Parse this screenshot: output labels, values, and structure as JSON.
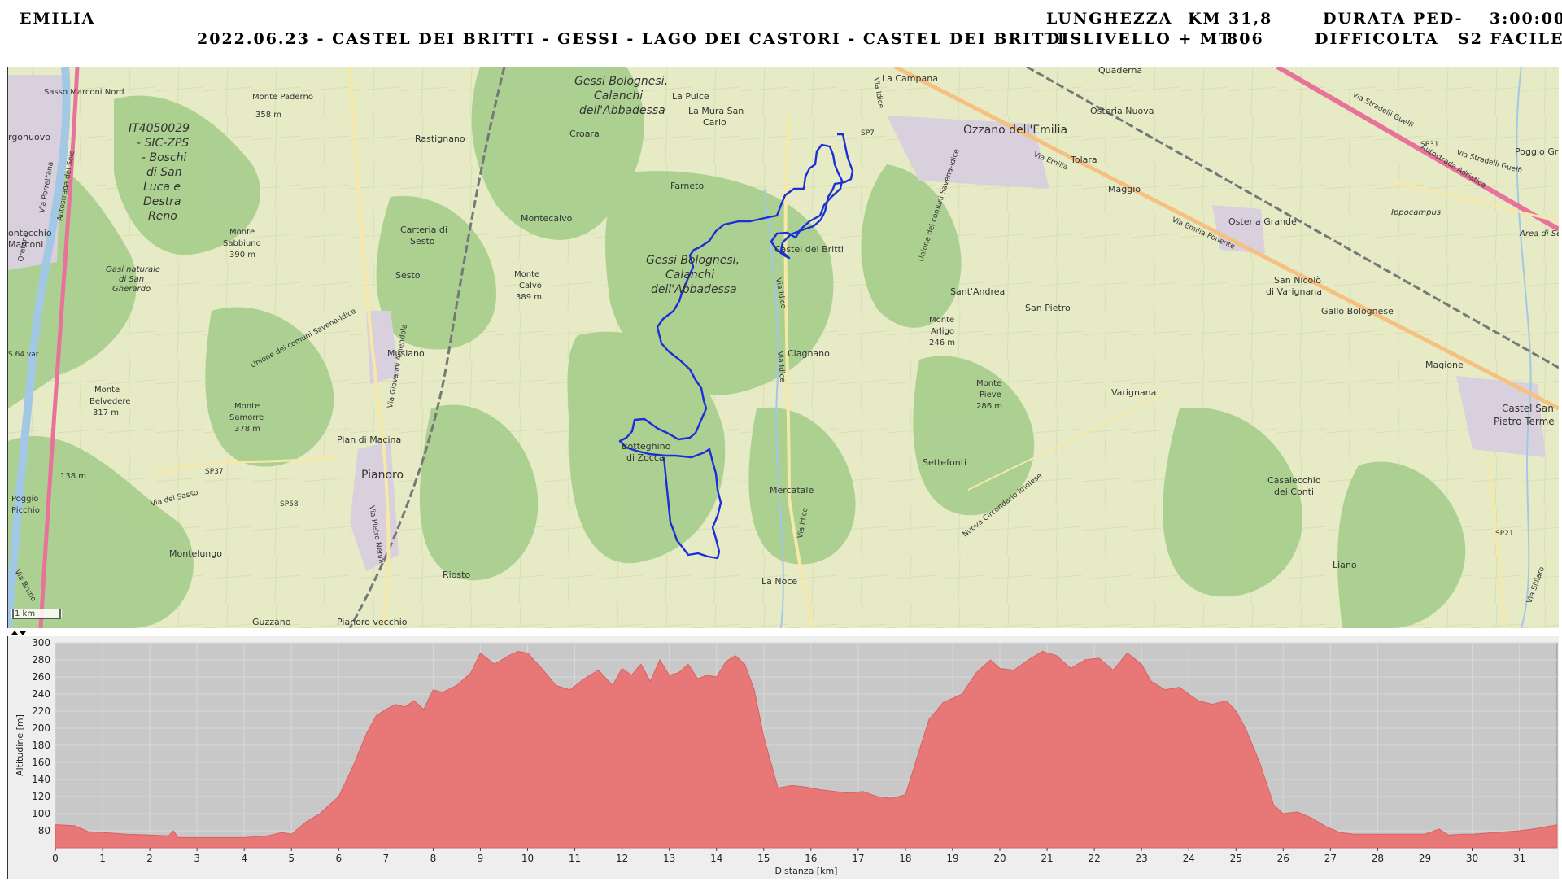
{
  "header": {
    "region": "EMILIA",
    "route_title": "2022.06.23 - CASTEL DEI BRITTI - GESSI - LAGO DEI CASTORI - CASTEL DEI BRITTI",
    "length_label": "LUNGHEZZA",
    "length_unit": "KM",
    "length_value": "31,8",
    "duration_label": "DURATA PED-",
    "duration_value": "3:00:00",
    "elevation_label": "DISLIVELLO + MT",
    "elevation_value": "806",
    "difficulty_label": "DIFFICOLTA",
    "difficulty_value": "S2 FACILE"
  },
  "map": {
    "scale_label": "1 km",
    "places": [
      {
        "name": "Sasso Marconi Nord",
        "key": "sasso-marconi-nord"
      },
      {
        "name": "Monte Paderno",
        "key": "monte-paderno"
      },
      {
        "name": "358 m",
        "key": "paderno-elev"
      },
      {
        "name": "rgonuovo",
        "key": "borgonuovo"
      },
      {
        "name": "IT4050029",
        "key": "natura-code"
      },
      {
        "name": "- SIC-ZPS",
        "key": "natura-type"
      },
      {
        "name": "- Boschi",
        "key": "natura-1"
      },
      {
        "name": "di San",
        "key": "natura-2"
      },
      {
        "name": "Luca e",
        "key": "natura-3"
      },
      {
        "name": "Destra",
        "key": "natura-4"
      },
      {
        "name": "Reno",
        "key": "natura-5"
      },
      {
        "name": "Rastignano",
        "key": "rastignano"
      },
      {
        "name": "Croara",
        "key": "croara"
      },
      {
        "name": "Gessi Bolognesi,",
        "key": "park-n1"
      },
      {
        "name": "Calanchi",
        "key": "park-n2"
      },
      {
        "name": "dell'Abbadessa",
        "key": "park-n3"
      },
      {
        "name": "La Pulce",
        "key": "la-pulce"
      },
      {
        "name": "La Mura San",
        "key": "la-mura-1"
      },
      {
        "name": "Carlo",
        "key": "la-mura-2"
      },
      {
        "name": "La Campana",
        "key": "la-campana"
      },
      {
        "name": "Quaderna",
        "key": "quaderna"
      },
      {
        "name": "Osteria Nuova",
        "key": "osteria-nuova"
      },
      {
        "name": "Ozzano dell'Emilia",
        "key": "ozzano"
      },
      {
        "name": "Tolara",
        "key": "tolara"
      },
      {
        "name": "Maggio",
        "key": "maggio"
      },
      {
        "name": "Poggio Gr",
        "key": "poggio-gr"
      },
      {
        "name": "Ippocampus",
        "key": "ippocampus"
      },
      {
        "name": "Area di Se",
        "key": "area-di-se"
      },
      {
        "name": "ontecchio",
        "key": "montecchio-1"
      },
      {
        "name": "Marconi",
        "key": "montecchio-2"
      },
      {
        "name": "Farneto",
        "key": "farneto"
      },
      {
        "name": "Montecalvo",
        "key": "montecalvo"
      },
      {
        "name": "Carteria di",
        "key": "carteria-1"
      },
      {
        "name": "Sesto",
        "key": "carteria-2"
      },
      {
        "name": "Monte",
        "key": "sabbiuno-1"
      },
      {
        "name": "Sabbiuno",
        "key": "sabbiuno-2"
      },
      {
        "name": "390 m",
        "key": "sabbiuno-3"
      },
      {
        "name": "Castel dei Britti",
        "key": "castel-dei-britti"
      },
      {
        "name": "Osteria Grande",
        "key": "osteria-grande"
      },
      {
        "name": "Oasi naturale",
        "key": "oasi-1"
      },
      {
        "name": "di San",
        "key": "oasi-2"
      },
      {
        "name": "Gherardo",
        "key": "oasi-3"
      },
      {
        "name": "Sesto",
        "key": "sesto"
      },
      {
        "name": "Monte",
        "key": "calvo-1"
      },
      {
        "name": "Calvo",
        "key": "calvo-2"
      },
      {
        "name": "389 m",
        "key": "calvo-3"
      },
      {
        "name": "Gessi Bolognesi,",
        "key": "park-s1"
      },
      {
        "name": "Calanchi",
        "key": "park-s2"
      },
      {
        "name": "dell'Abbadessa",
        "key": "park-s3"
      },
      {
        "name": "Sant'Andrea",
        "key": "sant-andrea"
      },
      {
        "name": "San Nicolò",
        "key": "san-nicolo-1"
      },
      {
        "name": "di Varignana",
        "key": "san-nicolo-2"
      },
      {
        "name": "San Pietro",
        "key": "san-pietro"
      },
      {
        "name": "Gallo Bolognese",
        "key": "gallo-bolognese"
      },
      {
        "name": "Monte",
        "key": "arligo-1"
      },
      {
        "name": "Arligo",
        "key": "arligo-2"
      },
      {
        "name": "246 m",
        "key": "arligo-3"
      },
      {
        "name": "Musiano",
        "key": "musiano"
      },
      {
        "name": "Ciagnano",
        "key": "ciagnano"
      },
      {
        "name": "Magione",
        "key": "magione"
      },
      {
        "name": "Monte",
        "key": "belvedere-1"
      },
      {
        "name": "Belvedere",
        "key": "belvedere-2"
      },
      {
        "name": "317 m",
        "key": "belvedere-3"
      },
      {
        "name": "Monte",
        "key": "pieve-1"
      },
      {
        "name": "Pieve",
        "key": "pieve-2"
      },
      {
        "name": "286 m",
        "key": "pieve-3"
      },
      {
        "name": "Varignana",
        "key": "varignana"
      },
      {
        "name": "Monte",
        "key": "samorre-1"
      },
      {
        "name": "Samorre",
        "key": "samorre-2"
      },
      {
        "name": "378 m",
        "key": "samorre-3"
      },
      {
        "name": "Castel San",
        "key": "castel-san-1"
      },
      {
        "name": "Pietro Terme",
        "key": "castel-san-2"
      },
      {
        "name": "Pian di Macina",
        "key": "pian-di-macina"
      },
      {
        "name": "Botteghino",
        "key": "botteghino-1"
      },
      {
        "name": "di Zocca",
        "key": "botteghino-2"
      },
      {
        "name": "Settefonti",
        "key": "settefonti"
      },
      {
        "name": "Pianoro",
        "key": "pianoro"
      },
      {
        "name": "138 m",
        "key": "elev-138"
      },
      {
        "name": "Poggio",
        "key": "poggio-1"
      },
      {
        "name": "Picchio",
        "key": "poggio-2"
      },
      {
        "name": "Casalecchio",
        "key": "casalecchio-1"
      },
      {
        "name": "dei Conti",
        "key": "casalecchio-2"
      },
      {
        "name": "Mercatale",
        "key": "mercatale"
      },
      {
        "name": "Montelungo",
        "key": "montelungo"
      },
      {
        "name": "Liano",
        "key": "liano"
      },
      {
        "name": "Riosto",
        "key": "riosto"
      },
      {
        "name": "La Noce",
        "key": "la-noce"
      },
      {
        "name": "Guzzano",
        "key": "guzzano"
      },
      {
        "name": "Pianoro vecchio",
        "key": "pianoro-vecchio"
      }
    ],
    "road_labels": [
      "SP7",
      "SP31",
      "SP37",
      "SP58",
      "SP21",
      "S.64 var",
      "Via Emilia",
      "Via Emilia Ponente",
      "Via Idice",
      "Autostrada Adriatica",
      "Via Stradelli Guelfi",
      "Via Stradelli Guelfi",
      "Via del Sasso",
      "Via Pietro Nenni",
      "Via Giovanni Amendola",
      "Autostrada del Sole",
      "Via Porrettana",
      "Unione dei comuni Savena-Idice",
      "Unione dei comuni Savena-Idice",
      "Nuova Circondario imolese",
      "Via Idice",
      "Via Idice",
      "Oretana",
      "Via Bruno",
      "Via Silliaro",
      "Via Idice"
    ],
    "colors": {
      "track": "#1a2fd6",
      "forest": "#a9cf8e",
      "farmland": "#eef0d4",
      "water": "#a3c8e6",
      "motorway": "#e8739a",
      "primary": "#f6c080",
      "urban": "#d8d0dc"
    }
  },
  "chart_data": {
    "type": "area",
    "xlabel": "Distanza [km]",
    "ylabel": "Altitudine [m]",
    "xlim": [
      0,
      31.8
    ],
    "ylim": [
      60,
      300
    ],
    "x_ticks": [
      "0",
      "1",
      "2",
      "3",
      "4",
      "5",
      "6",
      "7",
      "8",
      "9",
      "10",
      "11",
      "12",
      "13",
      "14",
      "15",
      "16",
      "17",
      "18",
      "19",
      "20",
      "21",
      "22",
      "23",
      "24",
      "25",
      "26",
      "27",
      "28",
      "29",
      "30",
      "31"
    ],
    "y_ticks": [
      "80",
      "100",
      "120",
      "140",
      "160",
      "180",
      "200",
      "220",
      "240",
      "260",
      "280",
      "300"
    ],
    "grid": true,
    "fill_color": "#e87878",
    "background_color": "#c8c8c8",
    "x": [
      0,
      0.4,
      0.7,
      1,
      1.5,
      2,
      2.4,
      2.5,
      2.6,
      3,
      3.5,
      4,
      4.5,
      4.8,
      5,
      5.3,
      5.6,
      6,
      6.3,
      6.6,
      6.8,
      7,
      7.2,
      7.4,
      7.6,
      7.8,
      8,
      8.2,
      8.5,
      8.8,
      9,
      9.3,
      9.6,
      9.8,
      10,
      10.3,
      10.6,
      10.9,
      11.2,
      11.5,
      11.8,
      12,
      12.2,
      12.4,
      12.6,
      12.8,
      13,
      13.2,
      13.4,
      13.6,
      13.8,
      14,
      14.2,
      14.4,
      14.6,
      14.8,
      15,
      15.3,
      15.6,
      15.9,
      16.2,
      16.5,
      16.8,
      17.1,
      17.4,
      17.7,
      18,
      18.3,
      18.5,
      18.8,
      19,
      19.2,
      19.5,
      19.8,
      20,
      20.3,
      20.6,
      20.9,
      21.2,
      21.5,
      21.8,
      22.1,
      22.4,
      22.7,
      23,
      23.2,
      23.5,
      23.8,
      24,
      24.2,
      24.5,
      24.8,
      25,
      25.2,
      25.5,
      25.8,
      26,
      26.3,
      26.6,
      26.9,
      27.2,
      27.5,
      28,
      28.5,
      29,
      29.3,
      29.5,
      29.8,
      30,
      30.5,
      31,
      31.3,
      31.6,
      31.8
    ],
    "values": [
      87,
      86,
      79,
      78,
      76,
      75,
      74,
      80,
      72,
      72,
      72,
      72,
      74,
      78,
      76,
      90,
      100,
      120,
      155,
      195,
      215,
      222,
      228,
      225,
      232,
      222,
      245,
      242,
      250,
      265,
      288,
      275,
      285,
      290,
      288,
      270,
      250,
      245,
      258,
      268,
      250,
      270,
      262,
      275,
      255,
      280,
      262,
      265,
      275,
      258,
      262,
      260,
      278,
      285,
      275,
      245,
      190,
      130,
      133,
      131,
      128,
      126,
      124,
      126,
      120,
      118,
      122,
      175,
      210,
      230,
      235,
      240,
      265,
      280,
      270,
      268,
      280,
      290,
      285,
      270,
      280,
      282,
      268,
      288,
      275,
      255,
      245,
      248,
      240,
      232,
      228,
      232,
      220,
      200,
      160,
      110,
      100,
      102,
      95,
      85,
      78,
      76,
      76,
      76,
      76,
      82,
      75,
      76,
      76,
      78,
      80,
      82,
      85,
      87
    ]
  }
}
